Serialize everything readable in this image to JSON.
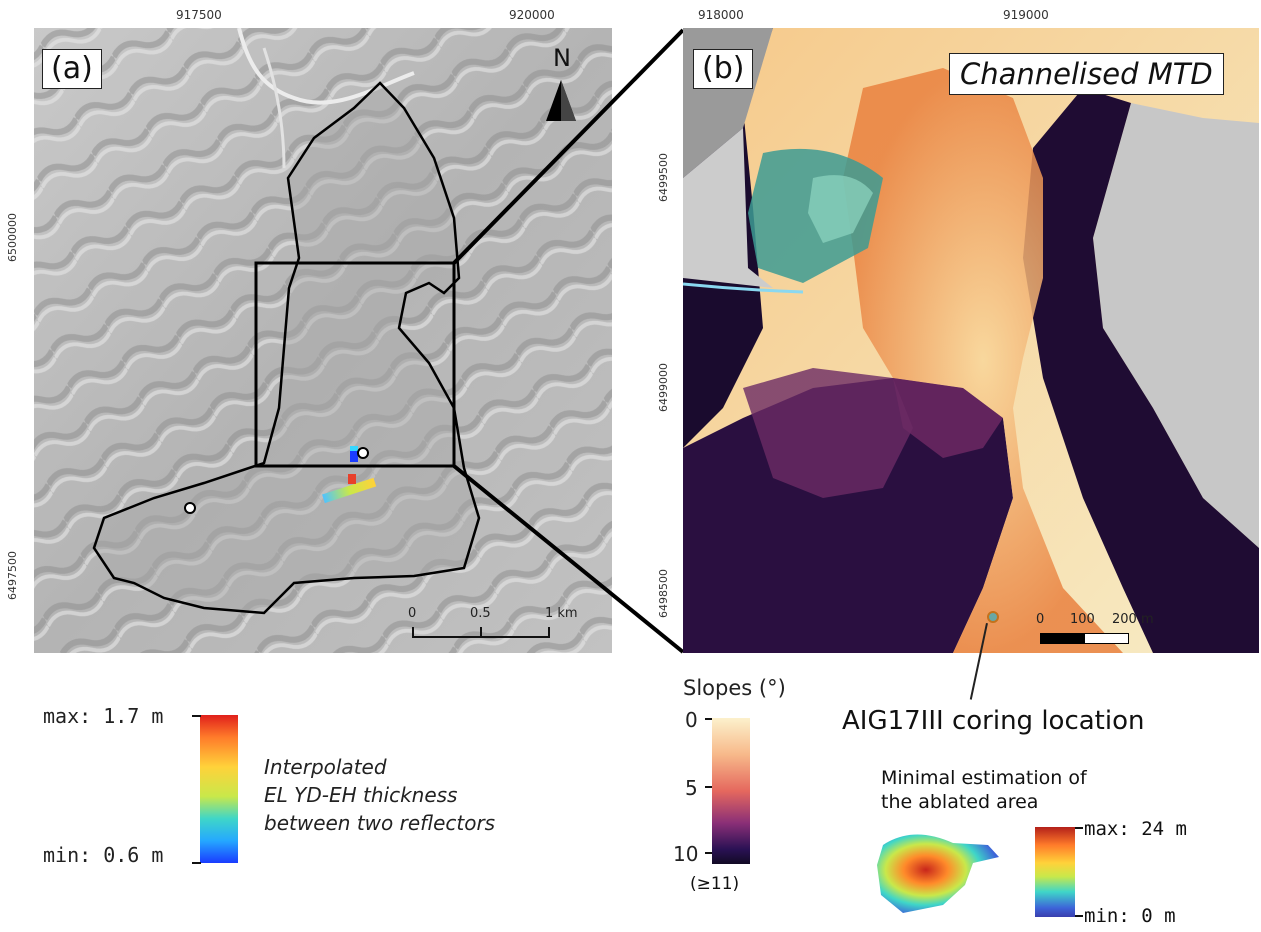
{
  "panel_a": {
    "label": "(a)",
    "north": "N",
    "x_ticks": [
      "917500",
      "920000"
    ],
    "y_ticks": [
      "6500000",
      "6497500"
    ],
    "scale_labels": [
      "0",
      "0.5",
      "1 km"
    ]
  },
  "panel_b": {
    "label": "(b)",
    "title": "Channelised MTD",
    "x_ticks": [
      "918000",
      "919000"
    ],
    "y_ticks": [
      "6499500",
      "6499000",
      "6498500"
    ],
    "scale_labels": [
      "0",
      "100",
      "200 m"
    ],
    "coring_label": "AIG17III coring location"
  },
  "legend_thickness": {
    "max_label": "max: 1.7 m",
    "min_label": "min: 0.6 m",
    "desc_line1": "Interpolated",
    "desc_line2": "EL YD-EH thickness",
    "desc_line3": "between two reflectors"
  },
  "legend_slopes": {
    "title": "Slopes (°)",
    "ticks": [
      "0",
      "5",
      "10"
    ],
    "overflow": "(≥11)"
  },
  "legend_ablation": {
    "title_line1": "Minimal estimation of",
    "title_line2": "the ablated area",
    "max_label": "max: 24 m",
    "min_label": "min: 0 m"
  },
  "colors": {
    "hillshade": "#b9b9b9",
    "outline": "#000000",
    "slope_high": "#1a0b2e",
    "slope_low": "#f7ecc6"
  }
}
